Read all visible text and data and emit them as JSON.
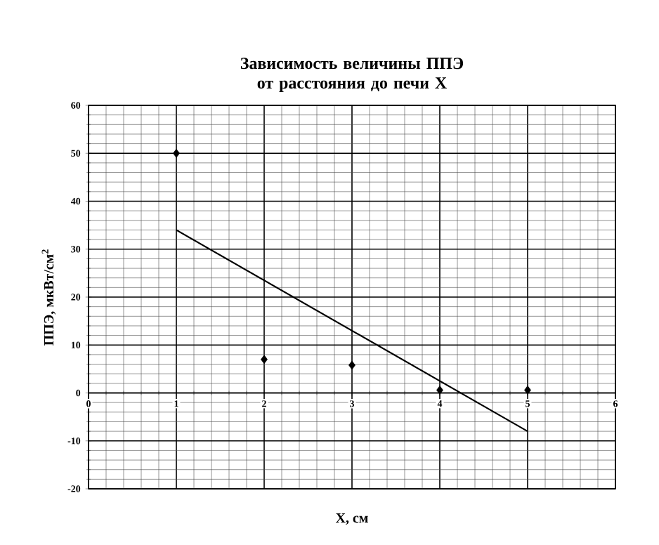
{
  "chart_data": {
    "type": "scatter",
    "title": "Зависимость величины ППЭ от расстояния до печи X",
    "xlabel": "X, см",
    "ylabel": "ППЭ, мкВт/см$^{2}$",
    "xlim": [
      0,
      6
    ],
    "xticks": [
      0,
      1,
      2,
      3,
      4,
      5,
      6
    ],
    "ylim": [
      -20,
      60
    ],
    "yticks": [
      -20,
      -10,
      0,
      10,
      20,
      30,
      40,
      50,
      60
    ],
    "grid": true,
    "series": [
      {
        "type": "scatter",
        "color": "#000000",
        "marker": "diamond",
        "x": [
          1,
          2,
          3,
          4,
          5
        ],
        "values": [
          50,
          7,
          5.8,
          0.6,
          0.6
        ]
      },
      {
        "type": "line",
        "color": "#000000",
        "marker": "none",
        "line_style": "solid",
        "x": [
          1,
          5
        ],
        "values": [
          34,
          -8
        ]
      }
    ]
  }
}
